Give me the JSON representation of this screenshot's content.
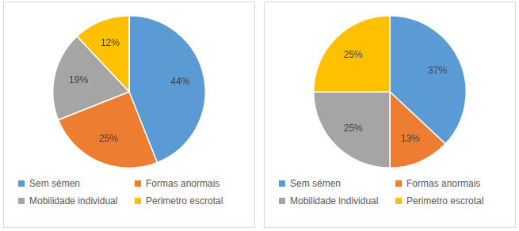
{
  "chart_data": [
    {
      "type": "pie",
      "categories": [
        "Sem sémen",
        "Formas anormais",
        "Mobilidade individual",
        "Perimetro escrotal"
      ],
      "values": [
        44,
        25,
        19,
        12
      ],
      "value_labels": [
        "44%",
        "25%",
        "19%",
        "12%"
      ],
      "colors": [
        "#5b9bd5",
        "#ed7d31",
        "#a5a5a5",
        "#ffc000"
      ],
      "data_labels": true,
      "legend": "bottom"
    },
    {
      "type": "pie",
      "categories": [
        "Sem sémen",
        "Formas anormais",
        "Mobilidade individual",
        "Perimetro escrotal"
      ],
      "values": [
        37,
        13,
        25,
        25
      ],
      "value_labels": [
        "37%",
        "13%",
        "25%",
        "25%"
      ],
      "colors": [
        "#5b9bd5",
        "#ed7d31",
        "#a5a5a5",
        "#ffc000"
      ],
      "data_labels": true,
      "legend": "bottom"
    }
  ]
}
